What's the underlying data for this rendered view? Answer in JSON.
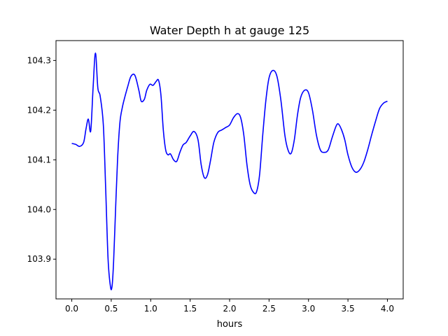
{
  "chart_data": {
    "type": "line",
    "title": "Water Depth h at gauge 125",
    "xlabel": "hours",
    "ylabel": "",
    "xlim": [
      -0.2,
      4.2
    ],
    "ylim": [
      103.82,
      104.34
    ],
    "x_ticks": [
      0.0,
      0.5,
      1.0,
      1.5,
      2.0,
      2.5,
      3.0,
      3.5,
      4.0
    ],
    "x_tick_labels": [
      "0.0",
      "0.5",
      "1.0",
      "1.5",
      "2.0",
      "2.5",
      "3.0",
      "3.5",
      "4.0"
    ],
    "y_ticks": [
      103.9,
      104.0,
      104.1,
      104.2,
      104.3
    ],
    "y_tick_labels": [
      "103.9",
      "104.0",
      "104.1",
      "104.2",
      "104.3"
    ],
    "grid": false,
    "legend": "none",
    "series": [
      {
        "color": "#0000ff",
        "x": [
          0.0,
          0.05,
          0.1,
          0.15,
          0.18,
          0.21,
          0.24,
          0.27,
          0.3,
          0.33,
          0.36,
          0.4,
          0.43,
          0.46,
          0.49,
          0.51,
          0.53,
          0.555,
          0.58,
          0.61,
          0.64,
          0.67,
          0.71,
          0.75,
          0.8,
          0.85,
          0.88,
          0.92,
          0.95,
          0.99,
          1.03,
          1.07,
          1.1,
          1.13,
          1.16,
          1.19,
          1.22,
          1.25,
          1.29,
          1.33,
          1.37,
          1.41,
          1.45,
          1.5,
          1.55,
          1.6,
          1.64,
          1.68,
          1.72,
          1.76,
          1.8,
          1.85,
          1.9,
          1.95,
          2.0,
          2.05,
          2.1,
          2.14,
          2.18,
          2.22,
          2.26,
          2.3,
          2.34,
          2.38,
          2.42,
          2.46,
          2.5,
          2.55,
          2.6,
          2.65,
          2.7,
          2.74,
          2.78,
          2.82,
          2.86,
          2.9,
          2.95,
          3.0,
          3.05,
          3.1,
          3.15,
          3.2,
          3.25,
          3.3,
          3.35,
          3.38,
          3.42,
          3.46,
          3.5,
          3.55,
          3.6,
          3.65,
          3.7,
          3.75,
          3.8,
          3.85,
          3.9,
          3.95,
          4.0
        ],
        "values": [
          104.133,
          104.131,
          104.127,
          104.135,
          104.162,
          104.182,
          104.158,
          104.245,
          104.315,
          104.245,
          104.228,
          104.17,
          104.04,
          103.9,
          103.845,
          103.845,
          103.895,
          104.0,
          104.1,
          104.175,
          104.205,
          104.225,
          104.248,
          104.268,
          104.27,
          104.24,
          104.218,
          104.222,
          104.24,
          104.252,
          104.25,
          104.258,
          104.26,
          104.23,
          104.16,
          104.12,
          104.11,
          104.112,
          104.1,
          104.097,
          104.115,
          104.13,
          104.135,
          104.148,
          104.157,
          104.14,
          104.09,
          104.064,
          104.07,
          104.1,
          104.135,
          104.155,
          104.16,
          104.165,
          104.17,
          104.185,
          104.193,
          104.185,
          104.15,
          104.09,
          104.05,
          104.035,
          104.035,
          104.07,
          104.15,
          104.22,
          104.265,
          104.28,
          104.268,
          104.22,
          104.15,
          104.12,
          104.113,
          104.14,
          104.19,
          104.225,
          104.24,
          104.235,
          104.2,
          104.15,
          104.12,
          104.115,
          104.12,
          104.145,
          104.168,
          104.172,
          104.16,
          104.14,
          104.11,
          104.085,
          104.075,
          104.08,
          104.095,
          104.12,
          104.15,
          104.178,
          104.203,
          104.214,
          104.218
        ]
      }
    ]
  }
}
